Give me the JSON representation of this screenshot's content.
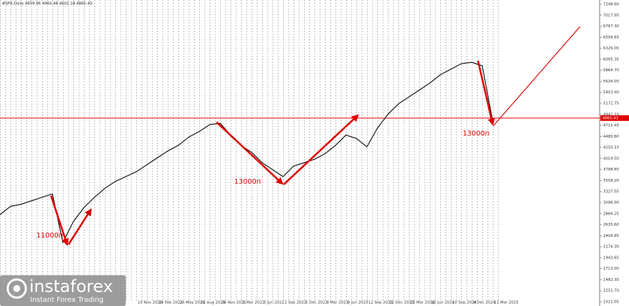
{
  "chart_data": {
    "type": "line",
    "header": "#SPX,Daily  4859.06 4960.48 4602.18 4865.43",
    "categories": [
      null,
      null,
      null,
      null,
      null,
      null,
      null,
      null,
      null,
      null,
      null,
      null,
      null,
      "10 Nov 2020",
      null,
      "24 Feb 2021",
      null,
      "26 May 2021",
      null,
      "24 Aug 2021",
      null,
      "26 Nov 2021",
      null,
      "1 Mar 2022",
      null,
      "3 Jun 2022",
      null,
      "2 Sep 2022",
      null,
      "5 Dec 2022",
      null,
      "9 Mar 2023",
      null,
      "9 Jun 2023",
      null,
      "12 Sep 2023",
      null,
      "12 Dec 2023",
      null,
      "13 Mar 2024",
      null,
      "12 Jun 2024",
      null,
      "10 Sep 2024",
      null,
      "9 Dec 2024",
      null,
      "11 Mar 2025"
    ],
    "values": [
      2845,
      3017,
      3061,
      3134,
      3206,
      3279,
      2264,
      2700,
      2990,
      3206,
      3395,
      3540,
      3641,
      3742,
      3887,
      4032,
      4177,
      4293,
      4467,
      4583,
      4728,
      4757,
      4510,
      4293,
      4148,
      3931,
      3786,
      3641,
      3858,
      3931,
      4003,
      4119,
      4293,
      4510,
      4438,
      4264,
      4655,
      4945,
      5162,
      5307,
      5452,
      5597,
      5771,
      5887,
      6003,
      6032,
      5959,
      4800
    ],
    "color": "#000000",
    "ylim": [
      933,
      7336
    ],
    "yticks": [
      {
        "value": 7248.6,
        "label": "7248.60"
      },
      {
        "value": 7017.95,
        "label": "7017.95"
      },
      {
        "value": 6787.3,
        "label": "6787.30"
      },
      {
        "value": 6556.65,
        "label": "6556.65"
      },
      {
        "value": 6326,
        "label": "6326.00"
      },
      {
        "value": 6095.35,
        "label": "6095.35"
      },
      {
        "value": 5864.7,
        "label": "5864.70"
      },
      {
        "value": 5634.05,
        "label": "5634.05"
      },
      {
        "value": 5403.4,
        "label": "5403.40"
      },
      {
        "value": 5172.75,
        "label": "5172.75"
      },
      {
        "value": 4942.1,
        "label": "4942.10"
      },
      {
        "value": 4711.45,
        "label": "4711.45"
      },
      {
        "value": 4480.8,
        "label": "4480.80"
      },
      {
        "value": 4250.15,
        "label": "4250.15"
      },
      {
        "value": 4019.5,
        "label": "4019.50"
      },
      {
        "value": 3788.85,
        "label": "3788.85"
      },
      {
        "value": 3558.2,
        "label": "3558.20"
      },
      {
        "value": 3327.55,
        "label": "3327.55"
      },
      {
        "value": 3096.9,
        "label": "3096.90"
      },
      {
        "value": 2866.25,
        "label": "2866.25"
      },
      {
        "value": 2635.6,
        "label": "2635.60"
      },
      {
        "value": 2404.95,
        "label": "2404.95"
      },
      {
        "value": 2174.3,
        "label": "2174.30"
      },
      {
        "value": 1943.65,
        "label": "1943.65"
      },
      {
        "value": 1713,
        "label": "1713.00"
      },
      {
        "value": 1482.35,
        "label": "1482.35"
      },
      {
        "value": 1251.7,
        "label": "1251.70"
      },
      {
        "value": 1021.05,
        "label": "1021.05"
      }
    ],
    "level": {
      "value": 4865.43,
      "label": "4865.43",
      "color": "#e00000"
    },
    "annotations": [
      "11000п",
      "13000п",
      "13000п"
    ],
    "logo": {
      "name": "instaforex",
      "tagline": "Instant Forex Trading"
    }
  }
}
